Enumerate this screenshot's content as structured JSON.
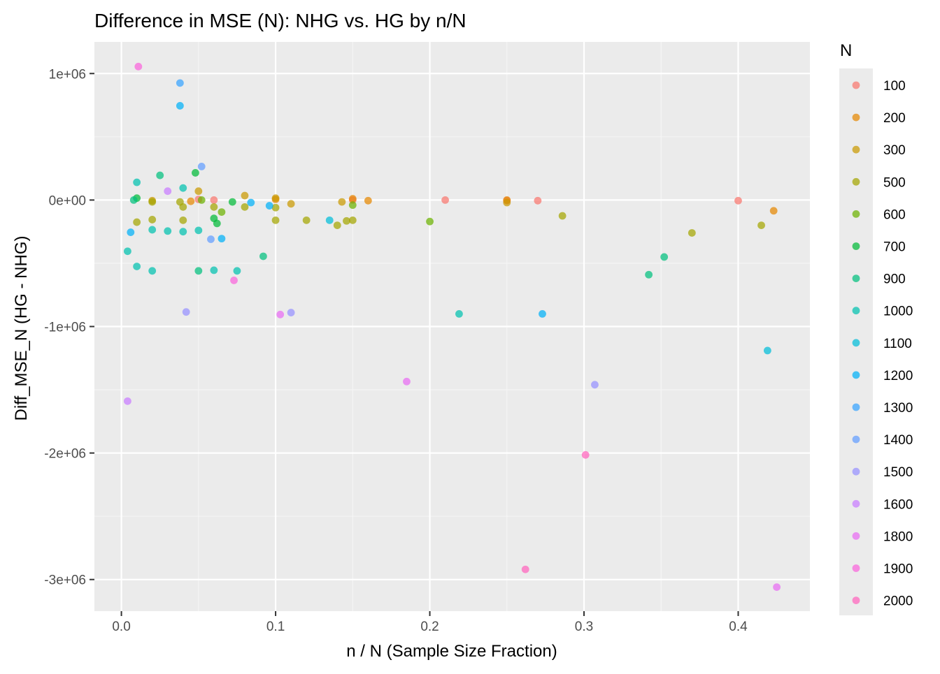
{
  "chart_data": {
    "type": "scatter",
    "title": "Difference in MSE (N): NHG vs. HG by n/N",
    "xlabel": "n / N (Sample Size Fraction)",
    "ylabel": "Diff_MSE_N (HG - NHG)",
    "xlim": [
      -0.0175,
      0.4465
    ],
    "ylim": [
      -3250000,
      1250000
    ],
    "x_ticks": [
      0.0,
      0.1,
      0.2,
      0.3,
      0.4
    ],
    "x_tick_labels": [
      "0.0",
      "0.1",
      "0.2",
      "0.3",
      "0.4"
    ],
    "y_ticks": [
      1000000,
      0,
      -1000000,
      -2000000,
      -3000000
    ],
    "y_tick_labels": [
      "1e+06",
      "0e+00",
      "-1e+06",
      "-2e+06",
      "-3e+06"
    ],
    "grid": true,
    "legend": {
      "title": "N",
      "placement": "right"
    },
    "series": [
      {
        "name": "100",
        "color": "#F8766D",
        "points": [
          [
            0.05,
            5000
          ],
          [
            0.06,
            0
          ],
          [
            0.15,
            0
          ],
          [
            0.21,
            0
          ],
          [
            0.25,
            -5000
          ],
          [
            0.27,
            -5000
          ],
          [
            0.4,
            -5000
          ]
        ]
      },
      {
        "name": "200",
        "color": "#E58700",
        "points": [
          [
            0.045,
            -10000
          ],
          [
            0.1,
            5000
          ],
          [
            0.15,
            10000
          ],
          [
            0.16,
            -5000
          ],
          [
            0.25,
            0
          ],
          [
            0.423,
            -85000
          ]
        ]
      },
      {
        "name": "300",
        "color": "#C99800",
        "points": [
          [
            0.02,
            -5000
          ],
          [
            0.05,
            70000
          ],
          [
            0.08,
            35000
          ],
          [
            0.1,
            15000
          ],
          [
            0.11,
            -30000
          ],
          [
            0.143,
            -15000
          ],
          [
            0.25,
            -20000
          ]
        ]
      },
      {
        "name": "500",
        "color": "#A3A500",
        "points": [
          [
            0.01,
            -175000
          ],
          [
            0.02,
            -15000
          ],
          [
            0.02,
            -155000
          ],
          [
            0.038,
            -15000
          ],
          [
            0.04,
            -55000
          ],
          [
            0.04,
            -160000
          ],
          [
            0.06,
            -55000
          ],
          [
            0.08,
            -55000
          ],
          [
            0.1,
            -60000
          ],
          [
            0.1,
            -160000
          ],
          [
            0.12,
            -160000
          ],
          [
            0.14,
            -200000
          ],
          [
            0.146,
            -165000
          ],
          [
            0.15,
            -160000
          ],
          [
            0.286,
            -125000
          ],
          [
            0.37,
            -260000
          ],
          [
            0.415,
            -200000
          ]
        ]
      },
      {
        "name": "600",
        "color": "#6BB100",
        "points": [
          [
            0.052,
            0
          ],
          [
            0.065,
            -95000
          ],
          [
            0.15,
            -40000
          ],
          [
            0.2,
            -170000
          ]
        ]
      },
      {
        "name": "700",
        "color": "#00BA38",
        "points": [
          [
            0.01,
            15000
          ],
          [
            0.048,
            215000
          ],
          [
            0.06,
            -145000
          ],
          [
            0.062,
            -185000
          ],
          [
            0.072,
            -15000
          ]
        ]
      },
      {
        "name": "900",
        "color": "#00BF7D",
        "points": [
          [
            0.008,
            0
          ],
          [
            0.025,
            195000
          ],
          [
            0.05,
            -560000
          ],
          [
            0.092,
            -445000
          ],
          [
            0.342,
            -590000
          ],
          [
            0.352,
            -450000
          ]
        ]
      },
      {
        "name": "1000",
        "color": "#00C0AF",
        "points": [
          [
            0.004,
            -405000
          ],
          [
            0.01,
            140000
          ],
          [
            0.01,
            -525000
          ],
          [
            0.02,
            -235000
          ],
          [
            0.02,
            -560000
          ],
          [
            0.03,
            -245000
          ],
          [
            0.04,
            95000
          ],
          [
            0.04,
            -250000
          ],
          [
            0.05,
            -240000
          ],
          [
            0.06,
            -555000
          ],
          [
            0.075,
            -560000
          ],
          [
            0.219,
            -900000
          ]
        ]
      },
      {
        "name": "1100",
        "color": "#00BCD8",
        "points": [
          [
            0.135,
            -160000
          ],
          [
            0.419,
            -1190000
          ]
        ]
      },
      {
        "name": "1200",
        "color": "#00B0F6",
        "points": [
          [
            0.006,
            -255000
          ],
          [
            0.038,
            745000
          ],
          [
            0.065,
            -305000
          ],
          [
            0.084,
            -20000
          ],
          [
            0.096,
            -45000
          ],
          [
            0.273,
            -900000
          ]
        ]
      },
      {
        "name": "1300",
        "color": "#35A2FF",
        "points": [
          [
            0.038,
            925000
          ]
        ]
      },
      {
        "name": "1400",
        "color": "#619CFF",
        "points": [
          [
            0.052,
            265000
          ],
          [
            0.058,
            -310000
          ]
        ]
      },
      {
        "name": "1500",
        "color": "#9590FF",
        "points": [
          [
            0.042,
            -885000
          ],
          [
            0.11,
            -890000
          ],
          [
            0.307,
            -1460000
          ]
        ]
      },
      {
        "name": "1600",
        "color": "#C77CFF",
        "points": [
          [
            0.004,
            -1590000
          ],
          [
            0.03,
            70000
          ]
        ]
      },
      {
        "name": "1800",
        "color": "#E76BF3",
        "points": [
          [
            0.103,
            -905000
          ],
          [
            0.185,
            -1435000
          ],
          [
            0.425,
            -3060000
          ]
        ]
      },
      {
        "name": "1900",
        "color": "#FA62DB",
        "points": [
          [
            0.011,
            1055000
          ],
          [
            0.073,
            -635000
          ]
        ]
      },
      {
        "name": "2000",
        "color": "#FF62BC",
        "points": [
          [
            0.262,
            -2920000
          ],
          [
            0.301,
            -2015000
          ]
        ]
      }
    ]
  }
}
